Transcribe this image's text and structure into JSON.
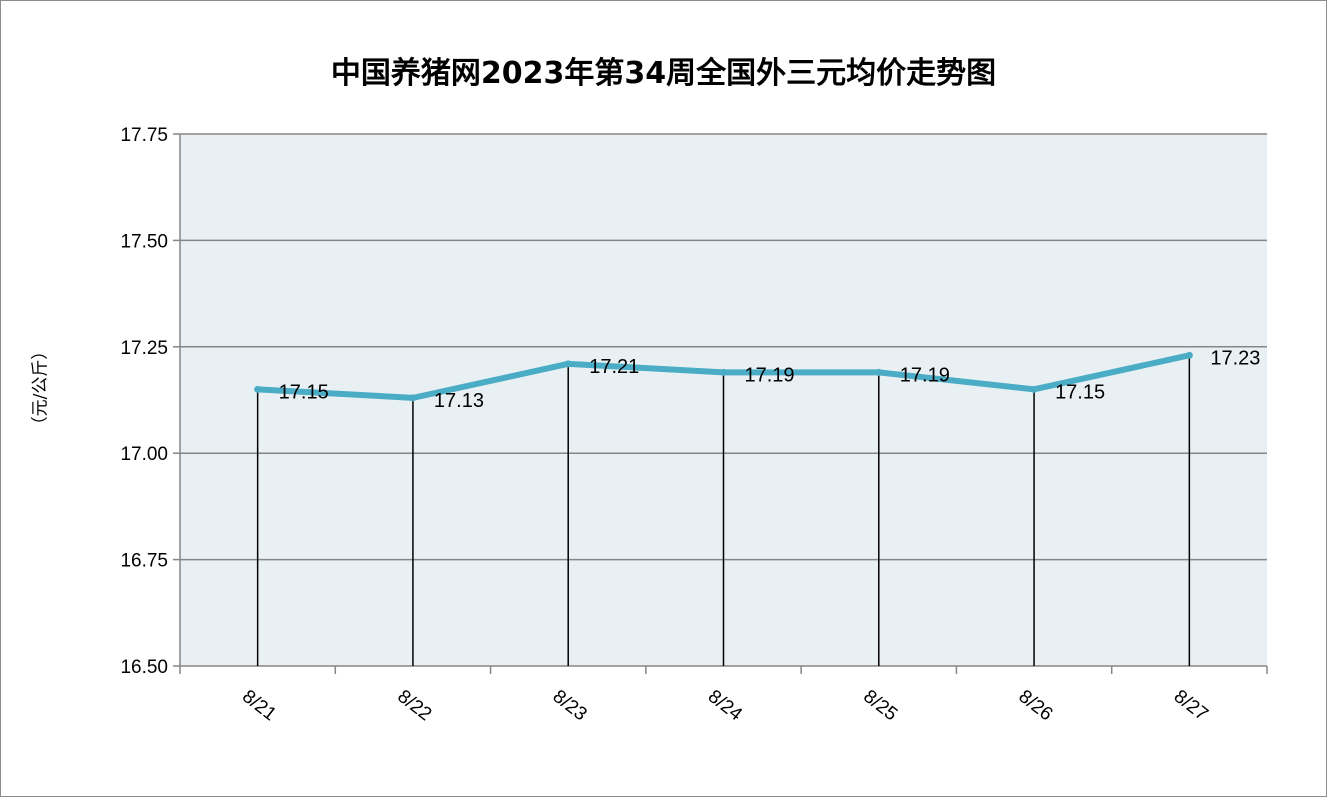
{
  "chart_data": {
    "type": "line",
    "title": "中国养猪网2023年第34周全国外三元均价走势图",
    "ylabel": "（元/公斤）",
    "xlabel": "",
    "categories": [
      "8/21",
      "8/22",
      "8/23",
      "8/24",
      "8/25",
      "8/26",
      "8/27"
    ],
    "series": [
      {
        "values": [
          17.15,
          17.13,
          17.21,
          17.19,
          17.19,
          17.15,
          17.23
        ]
      }
    ],
    "data_labels": [
      "17.15",
      "17.13",
      "17.21",
      "17.19",
      "17.19",
      "17.15",
      "17.23"
    ],
    "y_ticks": [
      "17.75",
      "17.50",
      "17.25",
      "17.00",
      "16.75",
      "16.50"
    ],
    "ylim": [
      16.5,
      17.75
    ],
    "grid": true,
    "drop_lines": true,
    "legend": "none",
    "colors": {
      "line": "#4bacc6",
      "plot_background": "#e9f0f3",
      "gridline": "#868686"
    }
  }
}
